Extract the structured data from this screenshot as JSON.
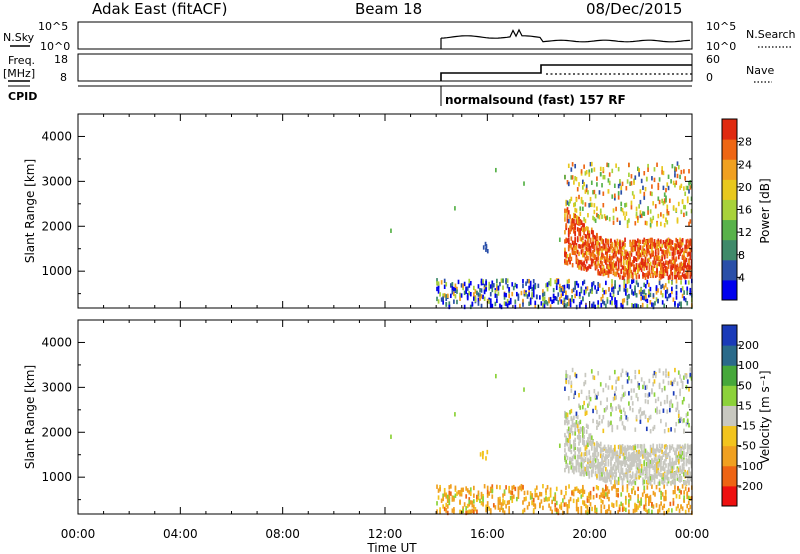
{
  "header": {
    "station": "Adak East (fitACF)",
    "beam": "Beam 18",
    "date": "08/Dec/2015"
  },
  "panels": {
    "nsky": {
      "left_label": "N.Sky",
      "left_ticks": [
        "10^5",
        "10^0"
      ],
      "right_label": "N.Search",
      "right_ticks": [
        "10^5",
        "10^0"
      ]
    },
    "freq": {
      "left_label_1": "Freq.",
      "left_label_2": "[MHz]",
      "left_ticks": [
        "18",
        "8"
      ],
      "right_label": "Nave",
      "right_ticks": [
        "60",
        "0"
      ]
    },
    "cpid": {
      "left_label": "CPID",
      "program": "normalsound (fast) 157 RF"
    }
  },
  "colors": {
    "power_scale": [
      "#0000ee",
      "#2a4fa8",
      "#3f8a6a",
      "#58b24a",
      "#a8d23a",
      "#e8c81e",
      "#f0a020",
      "#ee6614",
      "#e02a10"
    ],
    "velocity_scale": [
      "#ee1010",
      "#ee6414",
      "#f0a020",
      "#f2c41e",
      "#c8c8c0",
      "#8cd23a",
      "#46a83a",
      "#2a6a8a",
      "#1a3ab8"
    ],
    "ground_scatter": "#c8c8c0"
  },
  "chart_data": [
    {
      "type": "heatmap",
      "name": "power",
      "ylabel": "Slant Range [km]",
      "yticks": [
        "4000",
        "3000",
        "2000",
        "1000"
      ],
      "ylim": [
        180,
        4500
      ],
      "xlim": [
        "00:00",
        "24:00"
      ],
      "colorbar_label": "Power [dB]",
      "colorbar_ticks": [
        "28",
        "24",
        "20",
        "16",
        "12",
        "8",
        "4"
      ],
      "colorbar_range": [
        0,
        32
      ]
    },
    {
      "type": "heatmap",
      "name": "velocity",
      "xlabel": "Time UT",
      "xticks": [
        "00:00",
        "04:00",
        "08:00",
        "12:00",
        "16:00",
        "20:00",
        "00:00"
      ],
      "ylabel": "Slant Range [km]",
      "yticks": [
        "4000",
        "3000",
        "2000",
        "1000"
      ],
      "ylim": [
        180,
        4500
      ],
      "xlim": [
        "00:00",
        "24:00"
      ],
      "colorbar_label": "Velocity [m s⁻¹]",
      "colorbar_ticks": [
        "200",
        "100",
        "50",
        "15",
        "-15",
        "-50",
        "-100",
        "-200"
      ],
      "colorbar_range": [
        -250,
        250
      ]
    }
  ]
}
